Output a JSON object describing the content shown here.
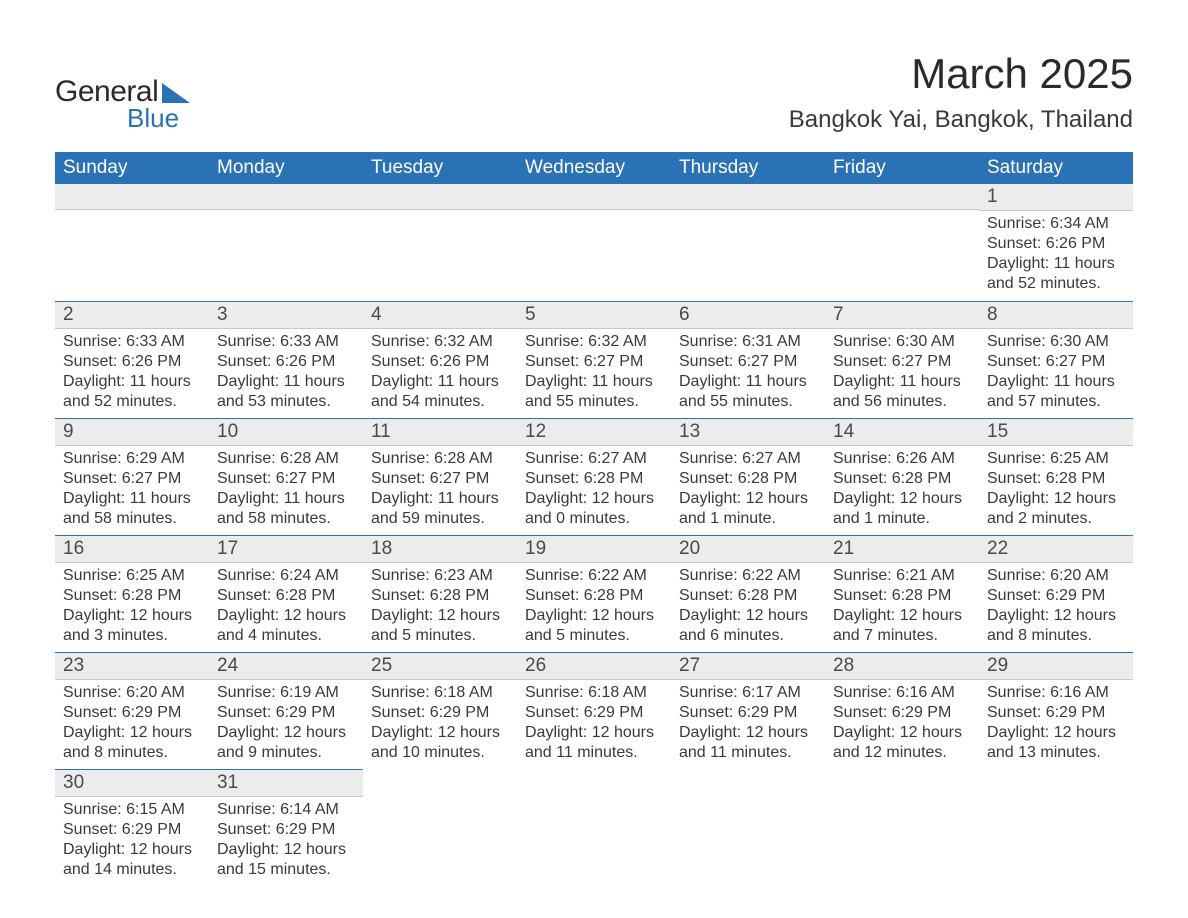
{
  "logo": {
    "text1": "General",
    "text2": "Blue"
  },
  "title": "March 2025",
  "subtitle": "Bangkok Yai, Bangkok, Thailand",
  "colors": {
    "header_bg": "#2a72b5",
    "header_text": "#ffffff",
    "daynum_bg": "#ececec",
    "border_accent": "#2a72b5",
    "text": "#3a3a3a",
    "page_bg": "#ffffff"
  },
  "typography": {
    "title_fontsize": 42,
    "subtitle_fontsize": 24,
    "header_fontsize": 19,
    "daynum_fontsize": 19,
    "detail_fontsize": 16,
    "font_family": "Arial"
  },
  "days_of_week": [
    "Sunday",
    "Monday",
    "Tuesday",
    "Wednesday",
    "Thursday",
    "Friday",
    "Saturday"
  ],
  "weeks": [
    [
      {
        "num": "",
        "lines": [
          "",
          "",
          "",
          ""
        ]
      },
      {
        "num": "",
        "lines": [
          "",
          "",
          "",
          ""
        ]
      },
      {
        "num": "",
        "lines": [
          "",
          "",
          "",
          ""
        ]
      },
      {
        "num": "",
        "lines": [
          "",
          "",
          "",
          ""
        ]
      },
      {
        "num": "",
        "lines": [
          "",
          "",
          "",
          ""
        ]
      },
      {
        "num": "",
        "lines": [
          "",
          "",
          "",
          ""
        ]
      },
      {
        "num": "1",
        "lines": [
          "Sunrise: 6:34 AM",
          "Sunset: 6:26 PM",
          "Daylight: 11 hours",
          "and 52 minutes."
        ]
      }
    ],
    [
      {
        "num": "2",
        "lines": [
          "Sunrise: 6:33 AM",
          "Sunset: 6:26 PM",
          "Daylight: 11 hours",
          "and 52 minutes."
        ]
      },
      {
        "num": "3",
        "lines": [
          "Sunrise: 6:33 AM",
          "Sunset: 6:26 PM",
          "Daylight: 11 hours",
          "and 53 minutes."
        ]
      },
      {
        "num": "4",
        "lines": [
          "Sunrise: 6:32 AM",
          "Sunset: 6:26 PM",
          "Daylight: 11 hours",
          "and 54 minutes."
        ]
      },
      {
        "num": "5",
        "lines": [
          "Sunrise: 6:32 AM",
          "Sunset: 6:27 PM",
          "Daylight: 11 hours",
          "and 55 minutes."
        ]
      },
      {
        "num": "6",
        "lines": [
          "Sunrise: 6:31 AM",
          "Sunset: 6:27 PM",
          "Daylight: 11 hours",
          "and 55 minutes."
        ]
      },
      {
        "num": "7",
        "lines": [
          "Sunrise: 6:30 AM",
          "Sunset: 6:27 PM",
          "Daylight: 11 hours",
          "and 56 minutes."
        ]
      },
      {
        "num": "8",
        "lines": [
          "Sunrise: 6:30 AM",
          "Sunset: 6:27 PM",
          "Daylight: 11 hours",
          "and 57 minutes."
        ]
      }
    ],
    [
      {
        "num": "9",
        "lines": [
          "Sunrise: 6:29 AM",
          "Sunset: 6:27 PM",
          "Daylight: 11 hours",
          "and 58 minutes."
        ]
      },
      {
        "num": "10",
        "lines": [
          "Sunrise: 6:28 AM",
          "Sunset: 6:27 PM",
          "Daylight: 11 hours",
          "and 58 minutes."
        ]
      },
      {
        "num": "11",
        "lines": [
          "Sunrise: 6:28 AM",
          "Sunset: 6:27 PM",
          "Daylight: 11 hours",
          "and 59 minutes."
        ]
      },
      {
        "num": "12",
        "lines": [
          "Sunrise: 6:27 AM",
          "Sunset: 6:28 PM",
          "Daylight: 12 hours",
          "and 0 minutes."
        ]
      },
      {
        "num": "13",
        "lines": [
          "Sunrise: 6:27 AM",
          "Sunset: 6:28 PM",
          "Daylight: 12 hours",
          "and 1 minute."
        ]
      },
      {
        "num": "14",
        "lines": [
          "Sunrise: 6:26 AM",
          "Sunset: 6:28 PM",
          "Daylight: 12 hours",
          "and 1 minute."
        ]
      },
      {
        "num": "15",
        "lines": [
          "Sunrise: 6:25 AM",
          "Sunset: 6:28 PM",
          "Daylight: 12 hours",
          "and 2 minutes."
        ]
      }
    ],
    [
      {
        "num": "16",
        "lines": [
          "Sunrise: 6:25 AM",
          "Sunset: 6:28 PM",
          "Daylight: 12 hours",
          "and 3 minutes."
        ]
      },
      {
        "num": "17",
        "lines": [
          "Sunrise: 6:24 AM",
          "Sunset: 6:28 PM",
          "Daylight: 12 hours",
          "and 4 minutes."
        ]
      },
      {
        "num": "18",
        "lines": [
          "Sunrise: 6:23 AM",
          "Sunset: 6:28 PM",
          "Daylight: 12 hours",
          "and 5 minutes."
        ]
      },
      {
        "num": "19",
        "lines": [
          "Sunrise: 6:22 AM",
          "Sunset: 6:28 PM",
          "Daylight: 12 hours",
          "and 5 minutes."
        ]
      },
      {
        "num": "20",
        "lines": [
          "Sunrise: 6:22 AM",
          "Sunset: 6:28 PM",
          "Daylight: 12 hours",
          "and 6 minutes."
        ]
      },
      {
        "num": "21",
        "lines": [
          "Sunrise: 6:21 AM",
          "Sunset: 6:28 PM",
          "Daylight: 12 hours",
          "and 7 minutes."
        ]
      },
      {
        "num": "22",
        "lines": [
          "Sunrise: 6:20 AM",
          "Sunset: 6:29 PM",
          "Daylight: 12 hours",
          "and 8 minutes."
        ]
      }
    ],
    [
      {
        "num": "23",
        "lines": [
          "Sunrise: 6:20 AM",
          "Sunset: 6:29 PM",
          "Daylight: 12 hours",
          "and 8 minutes."
        ]
      },
      {
        "num": "24",
        "lines": [
          "Sunrise: 6:19 AM",
          "Sunset: 6:29 PM",
          "Daylight: 12 hours",
          "and 9 minutes."
        ]
      },
      {
        "num": "25",
        "lines": [
          "Sunrise: 6:18 AM",
          "Sunset: 6:29 PM",
          "Daylight: 12 hours",
          "and 10 minutes."
        ]
      },
      {
        "num": "26",
        "lines": [
          "Sunrise: 6:18 AM",
          "Sunset: 6:29 PM",
          "Daylight: 12 hours",
          "and 11 minutes."
        ]
      },
      {
        "num": "27",
        "lines": [
          "Sunrise: 6:17 AM",
          "Sunset: 6:29 PM",
          "Daylight: 12 hours",
          "and 11 minutes."
        ]
      },
      {
        "num": "28",
        "lines": [
          "Sunrise: 6:16 AM",
          "Sunset: 6:29 PM",
          "Daylight: 12 hours",
          "and 12 minutes."
        ]
      },
      {
        "num": "29",
        "lines": [
          "Sunrise: 6:16 AM",
          "Sunset: 6:29 PM",
          "Daylight: 12 hours",
          "and 13 minutes."
        ]
      }
    ],
    [
      {
        "num": "30",
        "lines": [
          "Sunrise: 6:15 AM",
          "Sunset: 6:29 PM",
          "Daylight: 12 hours",
          "and 14 minutes."
        ]
      },
      {
        "num": "31",
        "lines": [
          "Sunrise: 6:14 AM",
          "Sunset: 6:29 PM",
          "Daylight: 12 hours",
          "and 15 minutes."
        ]
      },
      {
        "num": "",
        "lines": [
          "",
          "",
          "",
          ""
        ]
      },
      {
        "num": "",
        "lines": [
          "",
          "",
          "",
          ""
        ]
      },
      {
        "num": "",
        "lines": [
          "",
          "",
          "",
          ""
        ]
      },
      {
        "num": "",
        "lines": [
          "",
          "",
          "",
          ""
        ]
      },
      {
        "num": "",
        "lines": [
          "",
          "",
          "",
          ""
        ]
      }
    ]
  ]
}
